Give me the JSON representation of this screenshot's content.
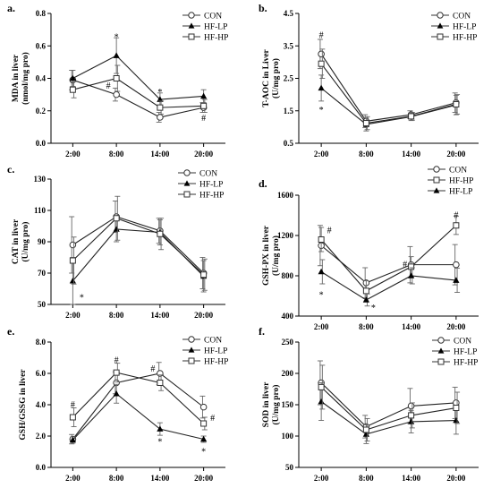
{
  "chart_data": [
    {
      "type": "line",
      "panel": "a.",
      "ylabel": [
        "MDA in liver",
        "(nmol/mg pro)"
      ],
      "x": [
        "2:00",
        "8:00",
        "14:00",
        "20:00"
      ],
      "ylim": [
        0.0,
        0.8
      ],
      "yticks": [
        "0.0",
        "0.2",
        "0.4",
        "0.6",
        "0.8"
      ],
      "legend": [
        "CON",
        "HF-LP",
        "HF-HP"
      ],
      "series": [
        {
          "name": "CON",
          "values": [
            0.39,
            0.3,
            0.16,
            0.22
          ],
          "err": [
            0.06,
            0.04,
            0.03,
            0.03
          ]
        },
        {
          "name": "HF-LP",
          "values": [
            0.4,
            0.54,
            0.27,
            0.29
          ],
          "err": [
            0.05,
            0.11,
            0.04,
            0.04
          ]
        },
        {
          "name": "HF-HP",
          "values": [
            0.33,
            0.4,
            0.22,
            0.23
          ],
          "err": [
            0.05,
            0.08,
            0.04,
            0.04
          ]
        }
      ],
      "annotations": [
        {
          "text": "*",
          "x": "8:00",
          "y": 0.66
        },
        {
          "text": "#",
          "x": "8:00",
          "y": 0.36,
          "dx": -9
        },
        {
          "text": "*",
          "x": "14:00",
          "y": 0.32
        },
        {
          "text": "#",
          "x": "20:00",
          "y": 0.16
        }
      ]
    },
    {
      "type": "line",
      "panel": "b.",
      "ylabel": [
        "T-AOC in Liver",
        "(U/mg pro)"
      ],
      "x": [
        "2:00",
        "8:00",
        "14:00",
        "20:00"
      ],
      "ylim": [
        0.5,
        4.5
      ],
      "yticks": [
        "0.5",
        "1.5",
        "2.5",
        "3.5",
        "4.5"
      ],
      "legend": [
        "CON",
        "HF-LP",
        "HF-HP"
      ],
      "series": [
        {
          "name": "CON",
          "values": [
            3.25,
            1.18,
            1.38,
            1.75
          ],
          "err": [
            0.45,
            0.2,
            0.12,
            0.3
          ]
        },
        {
          "name": "HF-LP",
          "values": [
            2.2,
            1.08,
            1.32,
            1.68
          ],
          "err": [
            0.4,
            0.2,
            0.12,
            0.3
          ]
        },
        {
          "name": "HF-HP",
          "values": [
            2.95,
            1.12,
            1.33,
            1.7
          ],
          "err": [
            0.45,
            0.2,
            0.12,
            0.3
          ]
        }
      ],
      "annotations": [
        {
          "text": "#",
          "x": "2:00",
          "y": 3.85
        },
        {
          "text": "*",
          "x": "2:00",
          "y": 1.55
        }
      ]
    },
    {
      "type": "line",
      "panel": "c.",
      "ylabel": [
        "CAT in liver",
        "(U/mg pro)"
      ],
      "x": [
        "2:00",
        "8:00",
        "14:00",
        "20:00"
      ],
      "ylim": [
        50,
        130
      ],
      "yticks": [
        "50",
        "70",
        "90",
        "110",
        "130"
      ],
      "legend": [
        "CON",
        "HF-LP",
        "HF-HP"
      ],
      "series": [
        {
          "name": "CON",
          "values": [
            88,
            106,
            97,
            70
          ],
          "err": [
            18,
            10,
            8,
            10
          ]
        },
        {
          "name": "HF-LP",
          "values": [
            65,
            98,
            96,
            68
          ],
          "err": [
            15,
            8,
            8,
            10
          ]
        },
        {
          "name": "HF-HP",
          "values": [
            78,
            105,
            95,
            69
          ],
          "err": [
            15,
            14,
            10,
            10
          ]
        }
      ],
      "annotations": [
        {
          "text": "*",
          "x": "2:00",
          "y": 55,
          "dx": 10
        }
      ]
    },
    {
      "type": "line",
      "panel": "d.",
      "ylabel": [
        "GSH-PX in liver",
        "(U/mg pro)"
      ],
      "x": [
        "2:00",
        "8:00",
        "14:00",
        "20:00"
      ],
      "ylim": [
        400,
        1600
      ],
      "yticks": [
        "400",
        "800",
        "1200",
        "1600"
      ],
      "legend": [
        "CON",
        "HF-HP",
        "HF-LP"
      ],
      "series": [
        {
          "name": "CON",
          "values": [
            1100,
            730,
            910,
            910
          ],
          "err": [
            200,
            150,
            180,
            200
          ]
        },
        {
          "name": "HF-HP",
          "values": [
            1160,
            650,
            890,
            1300
          ],
          "err": [
            120,
            100,
            100,
            90
          ]
        },
        {
          "name": "HF-LP",
          "values": [
            840,
            560,
            800,
            755
          ],
          "err": [
            120,
            60,
            80,
            120
          ]
        }
      ],
      "annotations": [
        {
          "text": "#",
          "x": "2:00",
          "y": 1260,
          "dx": 9
        },
        {
          "text": "*",
          "x": "2:00",
          "y": 620
        },
        {
          "text": "*",
          "x": "8:00",
          "y": 490,
          "dx": 8
        },
        {
          "text": "#",
          "x": "14:00",
          "y": 920,
          "dx": -7
        },
        {
          "text": "#",
          "x": "20:00",
          "y": 1410
        }
      ]
    },
    {
      "type": "line",
      "panel": "e.",
      "ylabel": [
        "GSH/GSSG in liver",
        ""
      ],
      "x": [
        "2:00",
        "8:00",
        "14:00",
        "20:00"
      ],
      "ylim": [
        0.0,
        8.0
      ],
      "yticks": [
        "0.0",
        "2.0",
        "4.0",
        "6.0",
        "8.0"
      ],
      "legend": [
        "CON",
        "HF-LP",
        "HF-HP"
      ],
      "series": [
        {
          "name": "CON",
          "values": [
            1.8,
            5.4,
            6.0,
            3.85
          ],
          "err": [
            0.3,
            0.7,
            0.7,
            0.7
          ]
        },
        {
          "name": "HF-LP",
          "values": [
            1.75,
            4.7,
            2.45,
            1.8
          ],
          "err": [
            0.2,
            0.6,
            0.4,
            0.2
          ]
        },
        {
          "name": "HF-HP",
          "values": [
            3.2,
            6.05,
            5.4,
            2.8
          ],
          "err": [
            0.6,
            0.6,
            0.5,
            0.4
          ]
        }
      ],
      "annotations": [
        {
          "text": "#",
          "x": "2:00",
          "y": 4.05
        },
        {
          "text": "#",
          "x": "8:00",
          "y": 6.9
        },
        {
          "text": "#",
          "x": "14:00",
          "y": 6.35,
          "dx": -8
        },
        {
          "text": "*",
          "x": "14:00",
          "y": 1.7
        },
        {
          "text": "#",
          "x": "20:00",
          "y": 3.2,
          "dx": 10
        },
        {
          "text": "*",
          "x": "20:00",
          "y": 1.05
        }
      ]
    },
    {
      "type": "line",
      "panel": "f.",
      "ylabel": [
        "SOD in liver",
        "(U/mg pro)"
      ],
      "x": [
        "2:00",
        "8:00",
        "14:00",
        "20:00"
      ],
      "ylim": [
        50,
        250
      ],
      "yticks": [
        "50",
        "100",
        "150",
        "200",
        "250"
      ],
      "legend": [
        "CON",
        "HF-LP",
        "HF-HP"
      ],
      "series": [
        {
          "name": "CON",
          "values": [
            185,
            115,
            148,
            153
          ],
          "err": [
            35,
            18,
            28,
            25
          ]
        },
        {
          "name": "HF-LP",
          "values": [
            155,
            103,
            123,
            125
          ],
          "err": [
            30,
            15,
            18,
            22
          ]
        },
        {
          "name": "HF-HP",
          "values": [
            178,
            110,
            133,
            145
          ],
          "err": [
            35,
            18,
            20,
            25
          ]
        }
      ],
      "annotations": []
    }
  ]
}
